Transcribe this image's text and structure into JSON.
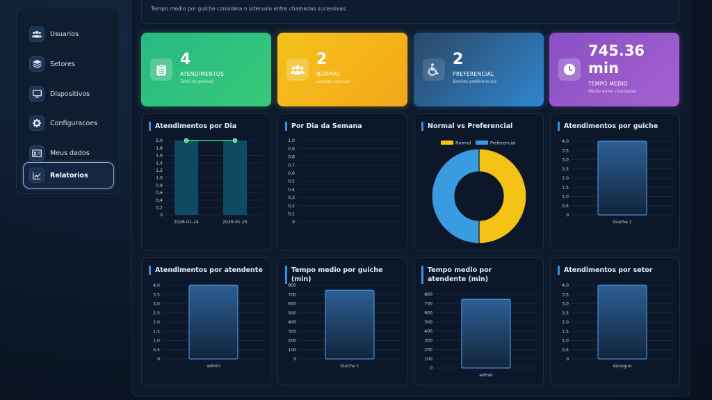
{
  "sidebar": {
    "items": [
      {
        "label": "Usuarios",
        "icon": "users-icon",
        "active": false
      },
      {
        "label": "Setores",
        "icon": "layers-icon",
        "active": false
      },
      {
        "label": "Dispositivos",
        "icon": "monitor-icon",
        "active": false
      },
      {
        "label": "Configuracoes",
        "icon": "gear-icon",
        "active": false
      },
      {
        "label": "Meus dados",
        "icon": "id-card-icon",
        "active": false
      },
      {
        "label": "Relatorios",
        "icon": "chart-line-icon",
        "active": true
      }
    ]
  },
  "notice": "Tempo medio por guiche considera o intervalo entre chamadas sucessivas.",
  "stats": [
    {
      "value": "4",
      "label": "ATENDIMENTOS",
      "sub": "Total no periodo",
      "icon": "clipboard-icon",
      "color": "#2bbf80"
    },
    {
      "value": "2",
      "label": "NORMAL",
      "sub": "Senhas normais",
      "icon": "users-icon",
      "color": "#f3b41b"
    },
    {
      "value": "2",
      "label": "PREFERENCIAL",
      "sub": "Senhas preferenciais",
      "icon": "wheelchair-icon",
      "color": "#2f86cf"
    },
    {
      "value": "745.36 min",
      "label": "TEMPO MEDIO",
      "sub": "Media entre chamadas",
      "icon": "clock-icon",
      "color": "#9a58ca"
    }
  ],
  "chart_data": [
    {
      "type": "bar",
      "title": "Atendimentos por Dia",
      "categories": [
        "2026-01-24",
        "2026-01-25"
      ],
      "values": [
        2,
        2
      ],
      "line_overlay": [
        2,
        2
      ],
      "ylim": [
        0,
        2
      ],
      "yticks": [
        "2,0",
        "1,8",
        "1,6",
        "1,4",
        "1,2",
        "1,0",
        "0,8",
        "0,6",
        "0,4",
        "0,2",
        "0"
      ],
      "bar_color": "#0f4a63",
      "line_color": "#3ee07a"
    },
    {
      "type": "bar",
      "title": "Por Dia da Semana",
      "categories": [],
      "values": [],
      "ylim": [
        0,
        1
      ],
      "yticks": [
        "1,0",
        "0,9",
        "0,8",
        "0,7",
        "0,6",
        "0,5",
        "0,4",
        "0,3",
        "0,2",
        "0,1",
        "0"
      ]
    },
    {
      "type": "pie",
      "title": "Normal vs Preferencial",
      "legend": [
        "Normal",
        "Preferencial"
      ],
      "values": [
        2,
        2
      ],
      "colors": [
        "#f5c316",
        "#3a9be0"
      ],
      "legend_position": "top"
    },
    {
      "type": "bar",
      "title": "Atendimentos por guiche",
      "categories": [
        "Guiche 1"
      ],
      "values": [
        4
      ],
      "ylim": [
        0,
        4
      ],
      "yticks": [
        "4,0",
        "3,5",
        "3,0",
        "2,5",
        "2,0",
        "1,5",
        "1,0",
        "0,5",
        "0"
      ]
    },
    {
      "type": "bar",
      "title": "Atendimentos por atendente",
      "categories": [
        "admin"
      ],
      "values": [
        4
      ],
      "ylim": [
        0,
        4
      ],
      "yticks": [
        "4,0",
        "3,5",
        "3,0",
        "2,5",
        "2,0",
        "1,5",
        "1,0",
        "0,5",
        "0"
      ]
    },
    {
      "type": "bar",
      "title": "Tempo medio por guiche (min)",
      "categories": [
        "Guiche 1"
      ],
      "values": [
        745.36
      ],
      "ylim": [
        0,
        800
      ],
      "yticks": [
        "800",
        "700",
        "600",
        "500",
        "400",
        "300",
        "200",
        "100",
        "0"
      ]
    },
    {
      "type": "bar",
      "title": "Tempo medio por atendente (min)",
      "categories": [
        "admin"
      ],
      "values": [
        745.36
      ],
      "ylim": [
        0,
        800
      ],
      "yticks": [
        "800",
        "700",
        "600",
        "500",
        "400",
        "300",
        "200",
        "100",
        "0"
      ]
    },
    {
      "type": "bar",
      "title": "Atendimentos por setor",
      "categories": [
        "Açougue"
      ],
      "values": [
        4
      ],
      "ylim": [
        0,
        4
      ],
      "yticks": [
        "4,0",
        "3,5",
        "3,0",
        "2,5",
        "2,0",
        "1,5",
        "1,0",
        "0,5",
        "0"
      ]
    }
  ]
}
